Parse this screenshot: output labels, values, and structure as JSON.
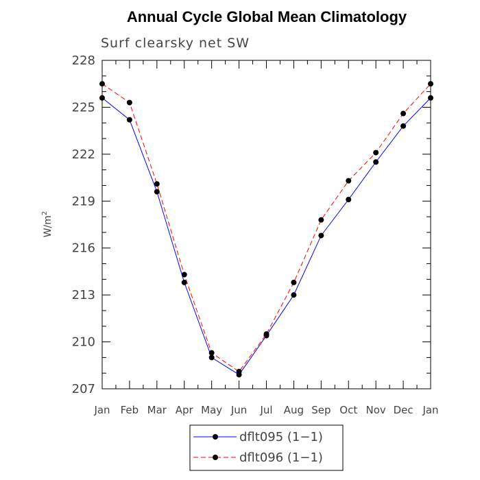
{
  "chart_data": {
    "type": "line",
    "title": "Annual Cycle Global Mean Climatology",
    "subtitle": "Surf clearsky net SW",
    "ylabel_base": "W/m",
    "ylabel_sup": "2",
    "xlabel": "",
    "categories": [
      "Jan",
      "Feb",
      "Mar",
      "Apr",
      "May",
      "Jun",
      "Jul",
      "Aug",
      "Sep",
      "Oct",
      "Nov",
      "Dec",
      "Jan"
    ],
    "ylim": [
      207,
      228
    ],
    "yticks": [
      207,
      210,
      213,
      216,
      219,
      222,
      225,
      228
    ],
    "grid": false,
    "legend_position": "bottom",
    "series": [
      {
        "name": "dflt095 (1−1)",
        "color": "#0000ff",
        "dash": "solid",
        "values": [
          225.6,
          224.2,
          219.6,
          213.8,
          209.0,
          207.9,
          210.4,
          213.0,
          216.8,
          219.1,
          221.5,
          223.8,
          225.6
        ]
      },
      {
        "name": "dflt096 (1−1)",
        "color": "#ff0000",
        "dash": "dashed",
        "values": [
          226.5,
          225.3,
          220.1,
          214.3,
          209.3,
          208.1,
          210.5,
          213.8,
          217.8,
          220.3,
          222.1,
          224.6,
          226.5
        ]
      }
    ]
  }
}
